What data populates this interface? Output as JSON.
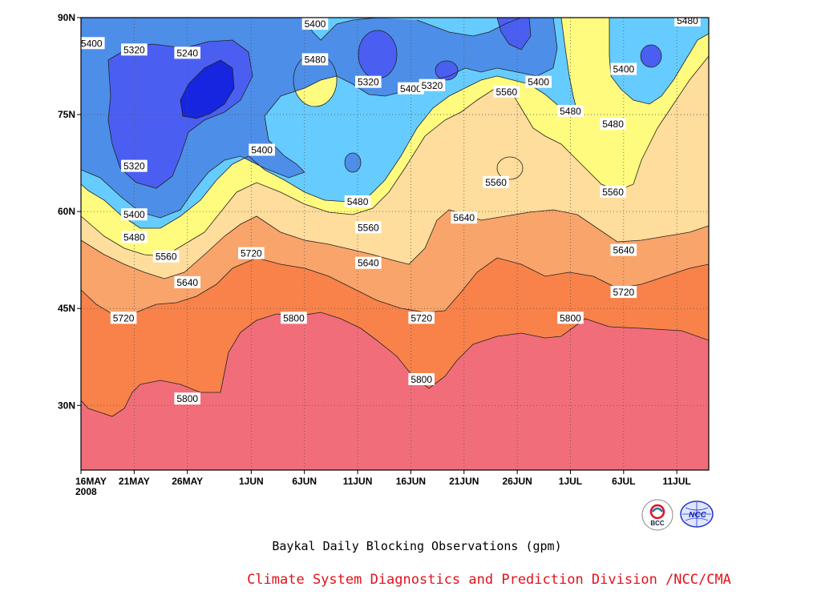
{
  "chart_data": {
    "type": "heatmap",
    "title": "Baykal Daily Blocking Observations (gpm)",
    "x_tick_labels": [
      "16MAY",
      "21MAY",
      "26MAY",
      "1JUN",
      "6JUN",
      "11JUN",
      "16JUN",
      "21JUN",
      "26JUN",
      "1JUL",
      "6JUL",
      "11JUL"
    ],
    "x_year_label": "2008",
    "y_tick_labels": [
      "90N",
      "75N",
      "60N",
      "45N",
      "30N"
    ],
    "y_range": [
      20,
      90
    ],
    "x_range": [
      "2008-05-16",
      "2008-07-14"
    ],
    "grid": "dotted",
    "contour_levels": [
      5240,
      5320,
      5400,
      5480,
      5560,
      5640,
      5720,
      5800
    ],
    "fill_colors": {
      "above_5800": "#f26d7a",
      "5720_5800": "#f8824a",
      "5640_5720": "#f9a46a",
      "5560_5640": "#ffdd9c",
      "5480_5560": "#fffb7f",
      "5400_5480": "#66ccff",
      "5320_5400": "#4d8ee8",
      "5240_5320": "#4a5ff2",
      "below_5240": "#1525e0"
    },
    "contour_labels": [
      {
        "value": "5400",
        "x": "2008-05-17",
        "lat": 86
      },
      {
        "value": "5320",
        "x": "2008-05-21",
        "lat": 85
      },
      {
        "value": "5240",
        "x": "2008-05-26",
        "lat": 84.5
      },
      {
        "value": "5400",
        "x": "2008-06-07",
        "lat": 89
      },
      {
        "value": "5480",
        "x": "2008-06-07",
        "lat": 83.5
      },
      {
        "value": "5320",
        "x": "2008-06-12",
        "lat": 80
      },
      {
        "value": "5400",
        "x": "2008-06-16",
        "lat": 79
      },
      {
        "value": "5320",
        "x": "2008-06-18",
        "lat": 79.5
      },
      {
        "value": "5400",
        "x": "2008-06-28",
        "lat": 80
      },
      {
        "value": "5560",
        "x": "2008-06-25",
        "lat": 78.5
      },
      {
        "value": "5480",
        "x": "2008-07-01",
        "lat": 75.5
      },
      {
        "value": "5480",
        "x": "2008-07-12",
        "lat": 89.5
      },
      {
        "value": "5400",
        "x": "2008-07-06",
        "lat": 82
      },
      {
        "value": "5480",
        "x": "2008-07-05",
        "lat": 73.5
      },
      {
        "value": "5400",
        "x": "2008-06-02",
        "lat": 69.5
      },
      {
        "value": "5320",
        "x": "2008-05-21",
        "lat": 67
      },
      {
        "value": "5400",
        "x": "2008-05-21",
        "lat": 59.5
      },
      {
        "value": "5480",
        "x": "2008-05-21",
        "lat": 56
      },
      {
        "value": "5560",
        "x": "2008-05-24",
        "lat": 53
      },
      {
        "value": "5640",
        "x": "2008-05-26",
        "lat": 49
      },
      {
        "value": "5720",
        "x": "2008-05-20",
        "lat": 43.5
      },
      {
        "value": "5800",
        "x": "2008-05-26",
        "lat": 31
      },
      {
        "value": "5720",
        "x": "2008-06-01",
        "lat": 53.5
      },
      {
        "value": "5800",
        "x": "2008-06-05",
        "lat": 43.5
      },
      {
        "value": "5480",
        "x": "2008-06-11",
        "lat": 61.5
      },
      {
        "value": "5560",
        "x": "2008-06-12",
        "lat": 57.5
      },
      {
        "value": "5640",
        "x": "2008-06-12",
        "lat": 52
      },
      {
        "value": "5720",
        "x": "2008-06-17",
        "lat": 43.5
      },
      {
        "value": "5800",
        "x": "2008-06-17",
        "lat": 34
      },
      {
        "value": "5640",
        "x": "2008-06-21",
        "lat": 59
      },
      {
        "value": "5560",
        "x": "2008-06-24",
        "lat": 64.5
      },
      {
        "value": "5560",
        "x": "2008-07-05",
        "lat": 63
      },
      {
        "value": "5640",
        "x": "2008-07-06",
        "lat": 54
      },
      {
        "value": "5720",
        "x": "2008-07-06",
        "lat": 47.5
      },
      {
        "value": "5800",
        "x": "2008-07-01",
        "lat": 43.5
      }
    ]
  },
  "caption": {
    "title": "Baykal Daily Blocking Observations (gpm)",
    "source": "Climate System Diagnostics and Prediction Division /NCC/CMA"
  },
  "logos": {
    "left_text": "BCC",
    "right_text": "NCC"
  }
}
